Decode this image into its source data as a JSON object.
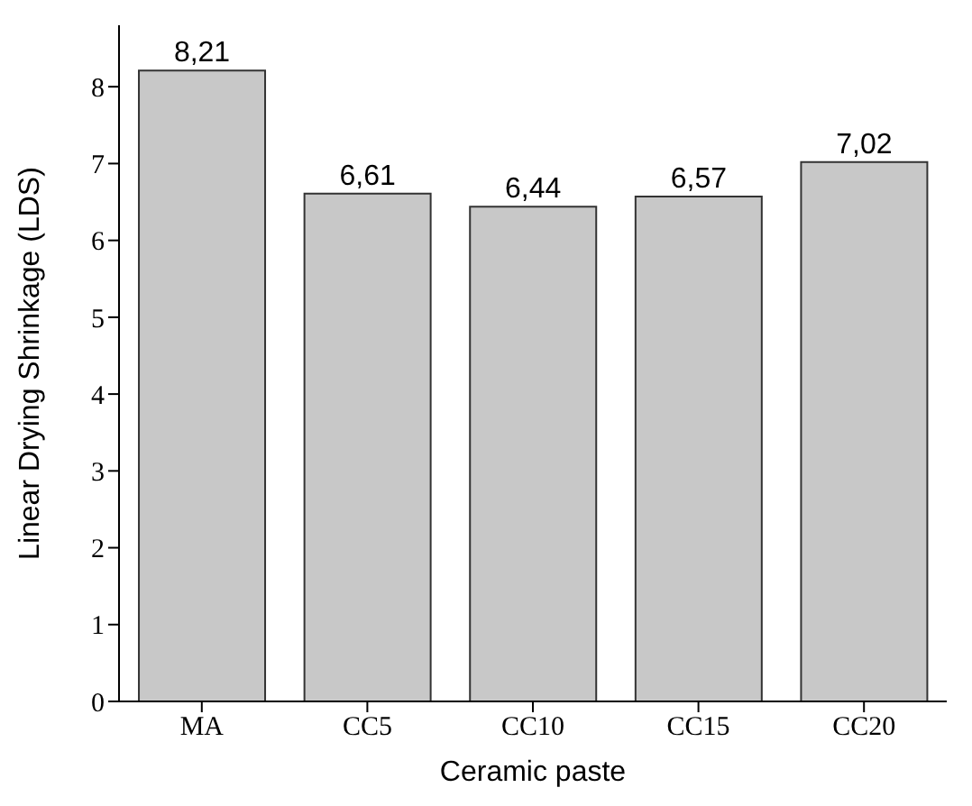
{
  "chart_data": {
    "type": "bar",
    "xlabel": "Ceramic paste",
    "ylabel": "Linear Drying Shrinkage (LDS)",
    "categories": [
      "MA",
      "CC5",
      "CC10",
      "CC15",
      "CC20"
    ],
    "values": [
      8.21,
      6.61,
      6.44,
      6.57,
      7.02
    ],
    "value_labels": [
      "8,21",
      "6,61",
      "6,44",
      "6,57",
      "7,02"
    ],
    "color": "#c8c8c8",
    "ylim": [
      0,
      8.8
    ],
    "yticks": [
      0,
      1,
      2,
      3,
      4,
      5,
      6,
      7,
      8
    ]
  }
}
